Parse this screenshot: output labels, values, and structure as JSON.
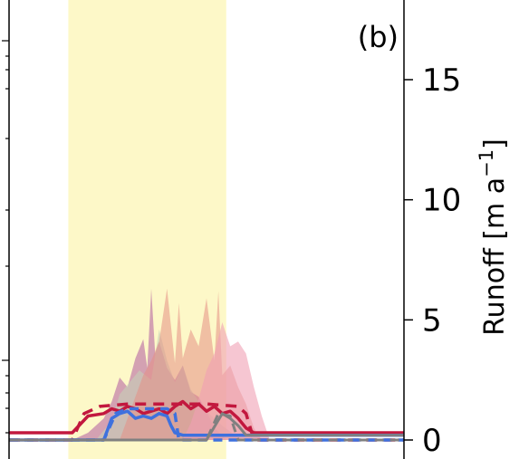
{
  "panel_label": "(b)",
  "chart_data": {
    "type": "area",
    "panel": "(b)",
    "ylabel_parts": {
      "base": "Runoff [m a",
      "sup": "−1",
      "close": "]"
    },
    "ylabel": "Runoff [m a⁻¹]",
    "ylim": [
      -0.3,
      18
    ],
    "yticks": [
      0,
      5,
      10,
      15
    ],
    "ytick_labels": [
      "0",
      "5",
      "10",
      "15"
    ],
    "xlim": [
      0,
      100
    ],
    "highlight_span": {
      "x_start": 15,
      "x_end": 55,
      "color": "#fdf8c8"
    },
    "series": [
      {
        "style": "area",
        "color": "#c07ca8",
        "opacity": 0.7,
        "x": [
          0,
          16,
          20,
          24,
          26,
          28,
          30,
          32,
          34,
          35,
          36,
          37,
          38,
          40,
          42,
          44,
          46,
          48,
          50,
          52,
          54,
          55,
          56,
          58,
          60,
          62,
          100
        ],
        "values": [
          0,
          0,
          0.3,
          0.9,
          1.6,
          2.6,
          2.2,
          3.4,
          4.2,
          3.0,
          6.3,
          3.6,
          4.1,
          3.0,
          2.5,
          3.1,
          2.0,
          1.8,
          1.2,
          0.5,
          0.2,
          0,
          0,
          0,
          0,
          0,
          0
        ]
      },
      {
        "style": "area",
        "color": "#c7d0b8",
        "opacity": 0.6,
        "x": [
          0,
          22,
          26,
          28,
          30,
          33,
          36,
          38,
          40,
          42,
          44,
          46,
          48,
          50,
          54,
          58,
          60,
          100
        ],
        "values": [
          0,
          0,
          0.8,
          1.9,
          2.3,
          2.9,
          2.5,
          4.6,
          3.3,
          2.4,
          3.1,
          2.1,
          1.6,
          1.2,
          0.6,
          0.1,
          0,
          0
        ]
      },
      {
        "style": "area",
        "color": "#e58f85",
        "opacity": 0.55,
        "x": [
          0,
          28,
          30,
          32,
          34,
          36,
          38,
          40,
          42,
          43,
          44,
          46,
          48,
          50,
          52,
          53,
          54,
          56,
          58,
          60,
          62,
          64,
          100
        ],
        "values": [
          0,
          0,
          0.9,
          1.8,
          2.7,
          3.3,
          4.1,
          6.3,
          3.2,
          5.7,
          3.4,
          4.6,
          3.9,
          5.9,
          3.3,
          6.2,
          2.7,
          3.1,
          2.2,
          1.5,
          0.5,
          0,
          0
        ]
      },
      {
        "style": "area",
        "color": "#f0a0b4",
        "opacity": 0.6,
        "x": [
          0,
          44,
          46,
          48,
          50,
          52,
          54,
          56,
          58,
          60,
          62,
          64,
          66,
          100
        ],
        "values": [
          0,
          0,
          0.7,
          1.7,
          2.9,
          3.6,
          4.9,
          3.9,
          4.1,
          3.6,
          2.2,
          1.0,
          0,
          0
        ]
      },
      {
        "style": "line",
        "color": "#c2183e",
        "width": 3.5,
        "dash": "",
        "x": [
          0,
          16,
          20,
          24,
          26,
          28,
          30,
          32,
          34,
          36,
          38,
          40,
          42,
          44,
          46,
          48,
          50,
          52,
          54,
          56,
          58,
          60,
          62,
          64,
          66,
          70,
          80,
          100
        ],
        "values": [
          0.3,
          0.3,
          1.0,
          1.1,
          1.3,
          1.2,
          1.4,
          1.3,
          1.1,
          1.2,
          1.3,
          1.1,
          1.4,
          1.6,
          1.3,
          1.5,
          1.2,
          1.4,
          1.1,
          1.2,
          0.9,
          0.5,
          0.3,
          0.3,
          0.3,
          0.3,
          0.3,
          0.3
        ]
      },
      {
        "style": "line",
        "color": "#c2183e",
        "width": 3.5,
        "dash": "12,8",
        "x": [
          0,
          16,
          19,
          23,
          30,
          40,
          50,
          58,
          60,
          62,
          100
        ],
        "values": [
          0,
          0,
          1.1,
          1.4,
          1.5,
          1.5,
          1.5,
          1.4,
          1.1,
          0,
          0
        ]
      },
      {
        "style": "line",
        "color": "#3e71de",
        "width": 3.5,
        "dash": "",
        "x": [
          0,
          24,
          26,
          28,
          30,
          32,
          34,
          36,
          38,
          40,
          41,
          42,
          44,
          46,
          48,
          52,
          56,
          60,
          100
        ],
        "values": [
          0,
          0,
          0.9,
          1.1,
          1.2,
          0.9,
          1.0,
          0.9,
          1.1,
          1.0,
          0.6,
          0.3,
          0.2,
          0.2,
          0.2,
          0.2,
          0.2,
          0.2,
          0.2
        ]
      },
      {
        "style": "line",
        "color": "#3e71de",
        "width": 3.5,
        "dash": "10,7",
        "x": [
          0,
          24,
          27,
          30,
          36,
          40,
          42,
          43,
          100
        ],
        "values": [
          0,
          0,
          1.1,
          1.3,
          1.3,
          1.3,
          1.1,
          0,
          0
        ]
      },
      {
        "style": "line",
        "color": "#808080",
        "width": 3,
        "dash": "",
        "x": [
          0,
          50,
          54,
          56,
          58,
          60,
          100
        ],
        "values": [
          0,
          0,
          1.1,
          0.9,
          0.6,
          0.2,
          0.2
        ]
      },
      {
        "style": "line",
        "color": "#808080",
        "width": 3,
        "dash": "10,7",
        "x": [
          0,
          50,
          53,
          56,
          57,
          58,
          100
        ],
        "values": [
          0,
          0,
          1.1,
          1.0,
          0.5,
          0,
          0
        ]
      }
    ]
  }
}
